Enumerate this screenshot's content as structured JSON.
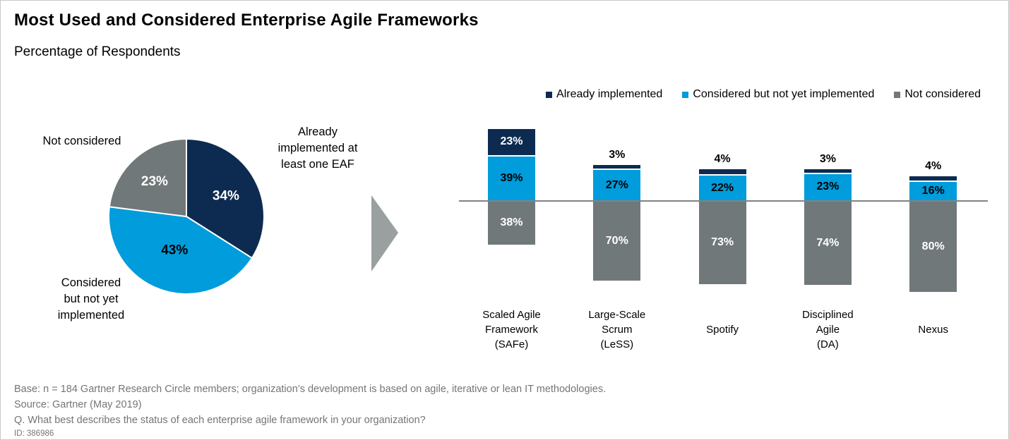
{
  "header": {
    "title": "Most Used and Considered Enterprise Agile Frameworks",
    "subtitle": "Percentage of Respondents"
  },
  "legend": {
    "items": [
      {
        "label": "Already implemented",
        "color": "#0D2B50"
      },
      {
        "label": "Considered but not yet implemented",
        "color": "#009CDB"
      },
      {
        "label": "Not considered",
        "color": "#71787A"
      }
    ]
  },
  "chart_data": [
    {
      "type": "pie",
      "name": "overall-eaf-adoption",
      "start": "12-o-clock-clockwise",
      "slices": [
        {
          "label": "Already implemented at least one EAF",
          "value": 34,
          "color": "#0D2B50",
          "value_label": "34%",
          "value_label_color": "#FFFFFF",
          "label_radius_frac": 0.58
        },
        {
          "label": "Considered but not yet implemented",
          "value": 43,
          "color": "#009CDB",
          "value_label": "43%",
          "value_label_color": "#000000",
          "label_radius_frac": 0.45
        },
        {
          "label": "Not considered",
          "value": 23,
          "color": "#71787A",
          "value_label": "23%",
          "value_label_color": "#FFFFFF",
          "label_radius_frac": 0.62
        }
      ],
      "callouts": {
        "not_considered": "Not considered",
        "already_implemented": "Already\nimplemented at\nleast one EAF",
        "considered": "Considered\nbut not yet\nimplemented"
      }
    },
    {
      "type": "stacked-bar",
      "name": "framework-status",
      "unit": "%",
      "layout": "implemented and considered stacked above baseline; not considered extends below baseline",
      "categories": [
        "Scaled Agile\nFramework\n(SAFe)",
        "Large-Scale\nScrum\n(LeSS)",
        "Spotify",
        "Disciplined\nAgile\n(DA)",
        "Nexus"
      ],
      "series": [
        {
          "name": "Already implemented",
          "color": "#0D2B50",
          "values": [
            23,
            3,
            4,
            3,
            4
          ]
        },
        {
          "name": "Considered but not yet implemented",
          "color": "#009CDB",
          "values": [
            39,
            27,
            22,
            23,
            16
          ]
        },
        {
          "name": "Not considered",
          "color": "#71787A",
          "values": [
            38,
            70,
            73,
            74,
            80
          ]
        }
      ],
      "axis_color": "#7E8384"
    }
  ],
  "arrow": {
    "color": "#9AA0A0"
  },
  "footer": {
    "lines": [
      "Base: n = 184 Gartner Research Circle members; organization’s development is based on agile, iterative or lean IT methodologies.",
      "Source: Gartner (May 2019)",
      "Q. What best describes the status of each enterprise agile framework in your organization?"
    ],
    "id": "ID: 386986"
  }
}
